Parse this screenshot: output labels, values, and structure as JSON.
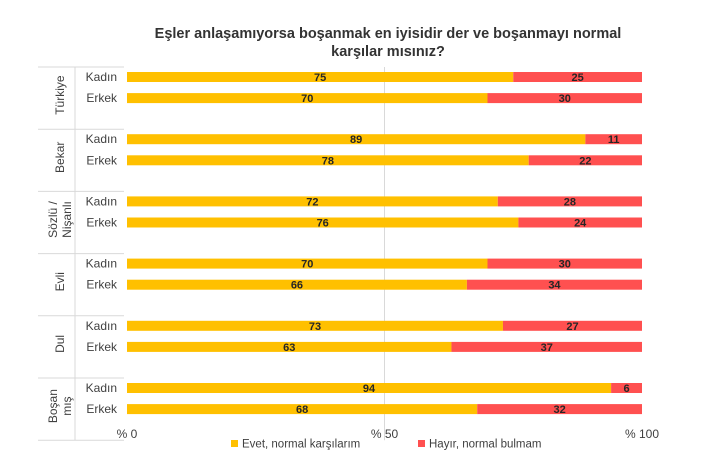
{
  "chart_data": {
    "type": "bar",
    "orientation": "horizontal",
    "stacked": true,
    "title": "Eşler anlaşamıyorsa boşanmak en iyisidir der ve boşanmayı normal karşılar mısınız?",
    "title_lines": [
      "Eşler anlaşamıyorsa boşanmak en iyisidir der ve boşanmayı normal",
      "karşılar mısınız?"
    ],
    "groups": [
      {
        "label_lines": [
          "Türkiye"
        ],
        "rows": [
          {
            "label": "Kadın",
            "values": [
              75,
              25
            ]
          },
          {
            "label": "Erkek",
            "values": [
              70,
              30
            ]
          }
        ]
      },
      {
        "label_lines": [
          "Bekar"
        ],
        "rows": [
          {
            "label": "Kadın",
            "values": [
              89,
              11
            ]
          },
          {
            "label": "Erkek",
            "values": [
              78,
              22
            ]
          }
        ]
      },
      {
        "label_lines": [
          "Sözlü /",
          "Nişanlı"
        ],
        "rows": [
          {
            "label": "Kadın",
            "values": [
              72,
              28
            ]
          },
          {
            "label": "Erkek",
            "values": [
              76,
              24
            ]
          }
        ]
      },
      {
        "label_lines": [
          "Evli"
        ],
        "rows": [
          {
            "label": "Kadın",
            "values": [
              70,
              30
            ]
          },
          {
            "label": "Erkek",
            "values": [
              66,
              34
            ]
          }
        ]
      },
      {
        "label_lines": [
          "Dul"
        ],
        "rows": [
          {
            "label": "Kadın",
            "values": [
              73,
              27
            ]
          },
          {
            "label": "Erkek",
            "values": [
              63,
              37
            ]
          }
        ]
      },
      {
        "label_lines": [
          "Boşan",
          "mış"
        ],
        "rows": [
          {
            "label": "Kadın",
            "values": [
              94,
              6
            ]
          },
          {
            "label": "Erkek",
            "values": [
              68,
              32
            ]
          }
        ]
      }
    ],
    "series": [
      {
        "name": "Evet, normal karşılarım",
        "color": "#FFC000"
      },
      {
        "name": "Hayır, normal bulmam",
        "color": "#FF5050"
      }
    ],
    "xlim": [
      0,
      100
    ],
    "x_ticks": [
      {
        "value": 0,
        "label": "% 0"
      },
      {
        "value": 50,
        "label": "% 50"
      },
      {
        "value": 100,
        "label": "% 100"
      }
    ],
    "grid": "vertical at 50",
    "legend_position": "bottom"
  }
}
